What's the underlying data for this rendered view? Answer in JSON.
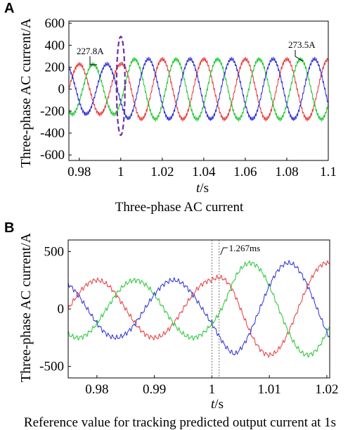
{
  "chart_data": [
    {
      "panel": "A",
      "type": "line",
      "caption": "Three-phase AC current",
      "xlabel_var": "t",
      "xlabel_unit": "/s",
      "ylabel": "Three-phase AC current/A",
      "xlim": [
        0.975,
        1.1
      ],
      "ylim": [
        -650,
        620
      ],
      "xticks": [
        "0.98",
        "1",
        "1.02",
        "1.04",
        "1.06",
        "1.08",
        "1.1"
      ],
      "yticks": [
        "600",
        "400",
        "200",
        "0",
        "-200",
        "-400",
        "-600"
      ],
      "annotations": [
        "227.8A",
        "273.5A"
      ],
      "highlight": {
        "x": 1.0,
        "y_range": [
          -420,
          480
        ],
        "color": "#7030a0"
      },
      "series": [
        {
          "color": "#e8393b",
          "amp_before": 227.8,
          "amp_after": 273.5,
          "freq_hz": 50,
          "phase_deg": 90
        },
        {
          "color": "#22c832",
          "amp_before": 227.8,
          "amp_after": 273.5,
          "freq_hz": 50,
          "phase_deg": -30
        },
        {
          "color": "#2f2fd6",
          "amp_before": 227.8,
          "amp_after": 273.5,
          "freq_hz": 50,
          "phase_deg": 210
        }
      ]
    },
    {
      "panel": "B",
      "type": "line",
      "caption": "Reference value for tracking predicted output current at 1s",
      "xlabel_var": "t",
      "xlabel_unit": "/s",
      "ylabel": "Three-phase AC current/A",
      "xlim": [
        0.975,
        1.0205
      ],
      "ylim": [
        -600,
        600
      ],
      "xticks": [
        "0.98",
        "0.99",
        "1",
        "1.01",
        "1.02"
      ],
      "yticks": [
        "500",
        "0",
        "-500"
      ],
      "annotations": [
        "1.267ms"
      ],
      "markers_x": [
        1.0,
        1.001267
      ],
      "series": [
        {
          "color": "#e8393b",
          "amp_before": 250,
          "amp_after": 400,
          "freq_hz": 50,
          "phase_deg": 90
        },
        {
          "color": "#22c832",
          "amp_before": 250,
          "amp_after": 400,
          "freq_hz": 50,
          "phase_deg": -30
        },
        {
          "color": "#2f2fd6",
          "amp_before": 250,
          "amp_after": 400,
          "freq_hz": 50,
          "phase_deg": 210
        }
      ]
    }
  ]
}
